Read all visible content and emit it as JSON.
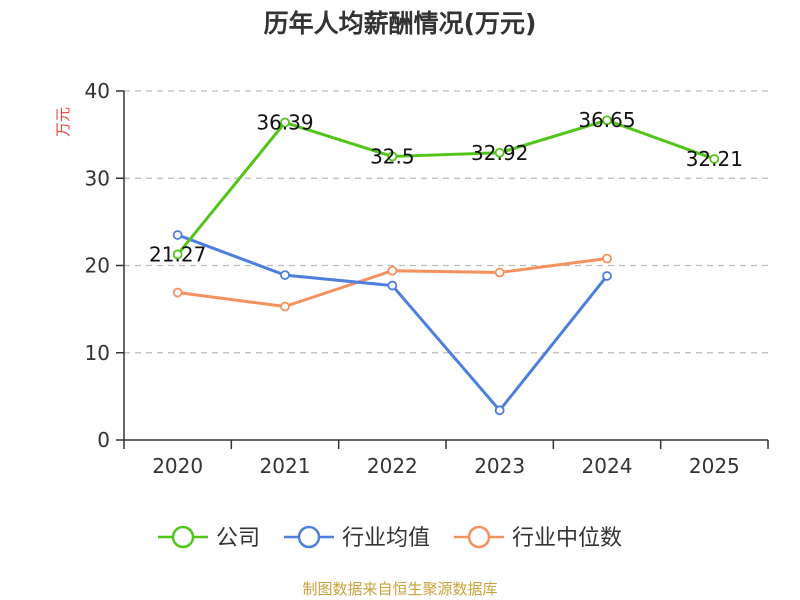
{
  "chart_data": {
    "type": "line",
    "title": "历年人均薪酬情况(万元)",
    "ylabel": "万元",
    "xlabel": "",
    "categories": [
      "2020",
      "2021",
      "2022",
      "2023",
      "2024",
      "2025"
    ],
    "ylim": [
      0,
      40
    ],
    "yticks": [
      0,
      10,
      20,
      30,
      40
    ],
    "grid": true,
    "legend_position": "bottom",
    "series": [
      {
        "name": "公司",
        "color": "#52c41a",
        "values": [
          21.27,
          36.39,
          32.5,
          32.92,
          36.65,
          32.21
        ],
        "show_labels": true
      },
      {
        "name": "行业均值",
        "color": "#4e7fdc",
        "values": [
          23.5,
          18.9,
          17.7,
          3.4,
          18.8,
          null
        ],
        "show_labels": false
      },
      {
        "name": "行业中位数",
        "color": "#f4915e",
        "values": [
          16.9,
          15.3,
          19.4,
          19.2,
          20.8,
          null
        ],
        "show_labels": false
      }
    ]
  },
  "source": "制图数据来自恒生聚源数据库"
}
